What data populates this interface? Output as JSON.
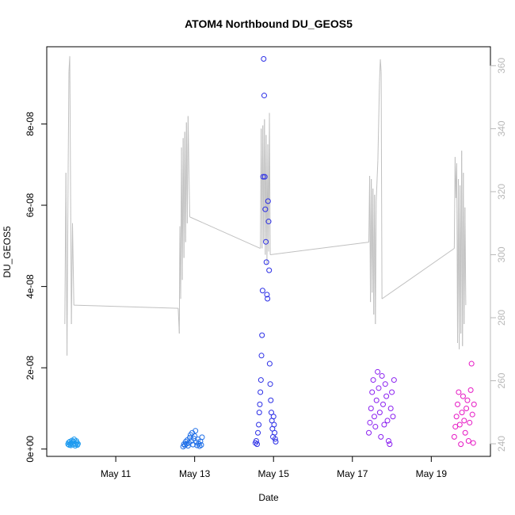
{
  "chart_data": {
    "type": "scatter",
    "title": "ATOM4 Northbound DU_GEOS5",
    "xlabel": "Date",
    "ylabel": "DU_GEOS5",
    "xlim": [
      "2016-05-09 06:00",
      "2016-05-20 12:00"
    ],
    "ylim": [
      -1.8e-09,
      9.9e-08
    ],
    "y2lim": [
      236,
      366
    ],
    "x_ticks": [
      {
        "date": "2016-05-11",
        "label": "May 11"
      },
      {
        "date": "2016-05-13",
        "label": "May 13"
      },
      {
        "date": "2016-05-15",
        "label": "May 15"
      },
      {
        "date": "2016-05-17",
        "label": "May 17"
      },
      {
        "date": "2016-05-19",
        "label": "May 19"
      }
    ],
    "y_ticks": [
      {
        "value": 0,
        "label": "0e+00"
      },
      {
        "value": 2e-08,
        "label": "2e-08"
      },
      {
        "value": 4e-08,
        "label": "4e-08"
      },
      {
        "value": 6e-08,
        "label": "6e-08"
      },
      {
        "value": 8e-08,
        "label": "8e-08"
      }
    ],
    "y2_ticks": [
      {
        "value": 240,
        "label": "240"
      },
      {
        "value": 260,
        "label": "260"
      },
      {
        "value": 280,
        "label": "280"
      },
      {
        "value": 300,
        "label": "300"
      },
      {
        "value": 320,
        "label": "320"
      },
      {
        "value": 340,
        "label": "340"
      },
      {
        "value": 360,
        "label": "360"
      }
    ],
    "grid": false,
    "legend": "none",
    "series": [
      {
        "color": "#1e9bf0",
        "points": [
          [
            "2016-05-09 19:00",
            1.2e-09
          ],
          [
            "2016-05-09 19:20",
            1.6e-09
          ],
          [
            "2016-05-09 19:40",
            1e-09
          ],
          [
            "2016-05-09 20:00",
            1.8e-09
          ],
          [
            "2016-05-09 20:20",
            1.3e-09
          ],
          [
            "2016-05-09 20:40",
            9e-10
          ],
          [
            "2016-05-09 21:00",
            1.5e-09
          ],
          [
            "2016-05-09 21:20",
            2.1e-09
          ],
          [
            "2016-05-09 21:40",
            1.7e-09
          ],
          [
            "2016-05-09 22:00",
            1.1e-09
          ],
          [
            "2016-05-09 22:20",
            1.9e-09
          ],
          [
            "2016-05-09 22:40",
            2.4e-09
          ],
          [
            "2016-05-09 23:00",
            1.4e-09
          ],
          [
            "2016-05-09 23:20",
            8e-10
          ],
          [
            "2016-05-09 23:40",
            1.2e-09
          ],
          [
            "2016-05-10 00:00",
            2e-09
          ],
          [
            "2016-05-10 00:20",
            1.6e-09
          ],
          [
            "2016-05-10 00:40",
            1e-09
          ],
          [
            "2016-05-10 01:00",
            1.3e-09
          ]
        ]
      },
      {
        "color": "#1f6fe8",
        "points": [
          [
            "2016-05-12 17:00",
            6e-10
          ],
          [
            "2016-05-12 17:30",
            1.2e-09
          ],
          [
            "2016-05-12 18:00",
            9e-10
          ],
          [
            "2016-05-12 18:30",
            1.8e-09
          ],
          [
            "2016-05-12 19:00",
            1.3e-09
          ],
          [
            "2016-05-12 19:30",
            2.2e-09
          ],
          [
            "2016-05-12 20:00",
            8e-10
          ],
          [
            "2016-05-12 20:30",
            1.5e-09
          ],
          [
            "2016-05-12 21:00",
            2.8e-09
          ],
          [
            "2016-05-12 21:30",
            3.5e-09
          ],
          [
            "2016-05-12 22:00",
            2e-09
          ],
          [
            "2016-05-12 22:30",
            4e-09
          ],
          [
            "2016-05-12 23:00",
            1.1e-09
          ],
          [
            "2016-05-12 23:30",
            2.6e-09
          ],
          [
            "2016-05-13 00:00",
            3.2e-09
          ],
          [
            "2016-05-13 00:30",
            4.5e-09
          ],
          [
            "2016-05-13 01:00",
            1.7e-09
          ],
          [
            "2016-05-13 01:30",
            9e-10
          ],
          [
            "2016-05-13 02:00",
            2.4e-09
          ],
          [
            "2016-05-13 02:30",
            1.3e-09
          ],
          [
            "2016-05-13 03:00",
            7e-10
          ],
          [
            "2016-05-13 03:30",
            1.9e-09
          ],
          [
            "2016-05-13 04:00",
            1e-09
          ],
          [
            "2016-05-13 04:30",
            2.9e-09
          ]
        ]
      },
      {
        "color": "#2b2ee6",
        "points": [
          [
            "2016-05-14 13:00",
            1.5e-09
          ],
          [
            "2016-05-14 13:30",
            2e-09
          ],
          [
            "2016-05-14 14:00",
            1.2e-09
          ],
          [
            "2016-05-14 14:30",
            4e-09
          ],
          [
            "2016-05-14 15:00",
            6e-09
          ],
          [
            "2016-05-14 15:20",
            9e-09
          ],
          [
            "2016-05-14 15:40",
            1.1e-08
          ],
          [
            "2016-05-14 16:00",
            1.4e-08
          ],
          [
            "2016-05-14 16:20",
            1.7e-08
          ],
          [
            "2016-05-14 16:40",
            2.3e-08
          ],
          [
            "2016-05-14 17:00",
            2.8e-08
          ],
          [
            "2016-05-14 17:20",
            3.9e-08
          ],
          [
            "2016-05-14 17:40",
            6.7e-08
          ],
          [
            "2016-05-14 18:00",
            9.6e-08
          ],
          [
            "2016-05-14 18:20",
            8.7e-08
          ],
          [
            "2016-05-14 18:40",
            6.7e-08
          ],
          [
            "2016-05-14 19:00",
            5.9e-08
          ],
          [
            "2016-05-14 19:20",
            5.1e-08
          ],
          [
            "2016-05-14 19:40",
            4.6e-08
          ],
          [
            "2016-05-14 20:00",
            3.8e-08
          ],
          [
            "2016-05-14 20:20",
            3.7e-08
          ],
          [
            "2016-05-14 20:40",
            6.1e-08
          ],
          [
            "2016-05-14 21:00",
            5.6e-08
          ],
          [
            "2016-05-14 21:20",
            4.4e-08
          ],
          [
            "2016-05-14 21:40",
            2.1e-08
          ],
          [
            "2016-05-14 22:00",
            1.6e-08
          ],
          [
            "2016-05-14 22:20",
            1.2e-08
          ],
          [
            "2016-05-14 22:40",
            9e-09
          ],
          [
            "2016-05-14 23:00",
            7e-09
          ],
          [
            "2016-05-14 23:20",
            5e-09
          ],
          [
            "2016-05-14 23:40",
            3e-09
          ],
          [
            "2016-05-15 00:00",
            8e-09
          ],
          [
            "2016-05-15 00:20",
            6e-09
          ],
          [
            "2016-05-15 00:40",
            4e-09
          ],
          [
            "2016-05-15 01:00",
            2.5e-09
          ],
          [
            "2016-05-15 01:20",
            1.8e-09
          ]
        ]
      },
      {
        "color": "#8a1ff0",
        "points": [
          [
            "2016-05-17 10:00",
            4e-09
          ],
          [
            "2016-05-17 10:40",
            6.5e-09
          ],
          [
            "2016-05-17 11:20",
            1e-08
          ],
          [
            "2016-05-17 12:00",
            1.4e-08
          ],
          [
            "2016-05-17 12:40",
            1.7e-08
          ],
          [
            "2016-05-17 13:20",
            8e-09
          ],
          [
            "2016-05-17 14:00",
            5.5e-09
          ],
          [
            "2016-05-17 14:40",
            1.2e-08
          ],
          [
            "2016-05-17 15:20",
            1.9e-08
          ],
          [
            "2016-05-17 16:00",
            1.5e-08
          ],
          [
            "2016-05-17 16:40",
            9e-09
          ],
          [
            "2016-05-17 17:20",
            3e-09
          ],
          [
            "2016-05-17 18:00",
            1.8e-08
          ],
          [
            "2016-05-17 18:40",
            1.1e-08
          ],
          [
            "2016-05-17 19:20",
            6e-09
          ],
          [
            "2016-05-17 20:00",
            1.6e-08
          ],
          [
            "2016-05-17 20:40",
            1.3e-08
          ],
          [
            "2016-05-17 21:20",
            7e-09
          ],
          [
            "2016-05-17 22:00",
            2e-09
          ],
          [
            "2016-05-17 22:40",
            1.2e-09
          ],
          [
            "2016-05-17 23:20",
            1e-08
          ],
          [
            "2016-05-18 00:00",
            1.4e-08
          ],
          [
            "2016-05-18 00:40",
            8e-09
          ],
          [
            "2016-05-18 01:20",
            1.7e-08
          ]
        ]
      },
      {
        "color": "#e617c4",
        "points": [
          [
            "2016-05-19 14:00",
            3e-09
          ],
          [
            "2016-05-19 14:40",
            5.5e-09
          ],
          [
            "2016-05-19 15:20",
            8e-09
          ],
          [
            "2016-05-19 16:00",
            1.1e-08
          ],
          [
            "2016-05-19 16:40",
            1.4e-08
          ],
          [
            "2016-05-19 17:20",
            6e-09
          ],
          [
            "2016-05-19 18:00",
            1.2e-09
          ],
          [
            "2016-05-19 18:40",
            9e-09
          ],
          [
            "2016-05-19 19:20",
            1.3e-08
          ],
          [
            "2016-05-19 20:00",
            7e-09
          ],
          [
            "2016-05-19 20:40",
            4e-09
          ],
          [
            "2016-05-19 21:20",
            1e-08
          ],
          [
            "2016-05-19 22:00",
            1.2e-08
          ],
          [
            "2016-05-19 22:40",
            2e-09
          ],
          [
            "2016-05-19 23:20",
            6.5e-09
          ],
          [
            "2016-05-20 00:00",
            1.45e-08
          ],
          [
            "2016-05-20 00:30",
            2.1e-08
          ],
          [
            "2016-05-20 01:00",
            8.5e-09
          ],
          [
            "2016-05-20 01:30",
            1.5e-09
          ],
          [
            "2016-05-20 02:00",
            1.1e-08
          ]
        ]
      }
    ],
    "secondary_line": {
      "color": "#c0c0c0",
      "axis": "right",
      "points": [
        [
          "2016-05-09 17:00",
          278
        ],
        [
          "2016-05-09 17:40",
          326
        ],
        [
          "2016-05-09 18:20",
          268
        ],
        [
          "2016-05-09 19:00",
          325
        ],
        [
          "2016-05-09 19:30",
          358
        ],
        [
          "2016-05-09 20:00",
          363
        ],
        [
          "2016-05-09 21:00",
          278
        ],
        [
          "2016-05-09 21:40",
          310
        ],
        [
          "2016-05-09 22:30",
          284
        ],
        [
          "2016-05-12 14:00",
          283
        ],
        [
          "2016-05-12 14:40",
          275
        ],
        [
          "2016-05-12 15:00",
          309
        ],
        [
          "2016-05-12 15:30",
          286
        ],
        [
          "2016-05-12 16:00",
          334
        ],
        [
          "2016-05-12 16:30",
          292
        ],
        [
          "2016-05-12 17:00",
          337
        ],
        [
          "2016-05-12 17:30",
          299
        ],
        [
          "2016-05-12 18:00",
          339
        ],
        [
          "2016-05-12 18:30",
          304
        ],
        [
          "2016-05-12 19:00",
          342
        ],
        [
          "2016-05-12 19:30",
          310
        ],
        [
          "2016-05-12 20:00",
          344
        ],
        [
          "2016-05-12 21:00",
          312
        ],
        [
          "2016-05-14 16:00",
          302
        ],
        [
          "2016-05-14 16:30",
          340
        ],
        [
          "2016-05-14 17:00",
          302
        ],
        [
          "2016-05-14 17:30",
          341
        ],
        [
          "2016-05-14 18:00",
          304
        ],
        [
          "2016-05-14 18:30",
          343
        ],
        [
          "2016-05-14 19:00",
          300
        ],
        [
          "2016-05-14 19:30",
          338
        ],
        [
          "2016-05-14 20:00",
          297
        ],
        [
          "2016-05-14 20:30",
          335
        ],
        [
          "2016-05-14 21:00",
          301
        ],
        [
          "2016-05-14 21:30",
          345
        ],
        [
          "2016-05-14 22:00",
          300
        ],
        [
          "2016-05-17 10:00",
          304
        ],
        [
          "2016-05-17 10:30",
          325
        ],
        [
          "2016-05-17 11:00",
          285
        ],
        [
          "2016-05-17 11:30",
          324
        ],
        [
          "2016-05-17 12:00",
          288
        ],
        [
          "2016-05-17 12:30",
          321
        ],
        [
          "2016-05-17 13:00",
          281
        ],
        [
          "2016-05-17 13:30",
          319
        ],
        [
          "2016-05-17 14:00",
          278
        ],
        [
          "2016-05-17 14:30",
          317
        ],
        [
          "2016-05-17 15:30",
          330
        ],
        [
          "2016-05-17 16:30",
          355
        ],
        [
          "2016-05-17 17:00",
          362
        ],
        [
          "2016-05-17 17:30",
          358
        ],
        [
          "2016-05-17 18:00",
          286
        ],
        [
          "2016-05-19 14:00",
          302
        ],
        [
          "2016-05-19 14:30",
          331
        ],
        [
          "2016-05-19 15:00",
          318
        ],
        [
          "2016-05-19 15:30",
          329
        ],
        [
          "2016-05-19 16:00",
          272
        ],
        [
          "2016-05-19 16:30",
          324
        ],
        [
          "2016-05-19 17:00",
          270
        ],
        [
          "2016-05-19 17:30",
          322
        ],
        [
          "2016-05-19 18:00",
          275
        ],
        [
          "2016-05-19 18:30",
          333
        ],
        [
          "2016-05-19 19:00",
          271
        ],
        [
          "2016-05-19 19:30",
          326
        ],
        [
          "2016-05-19 20:00",
          278
        ],
        [
          "2016-05-19 20:30",
          315
        ],
        [
          "2016-05-19 21:00",
          284
        ]
      ]
    }
  }
}
